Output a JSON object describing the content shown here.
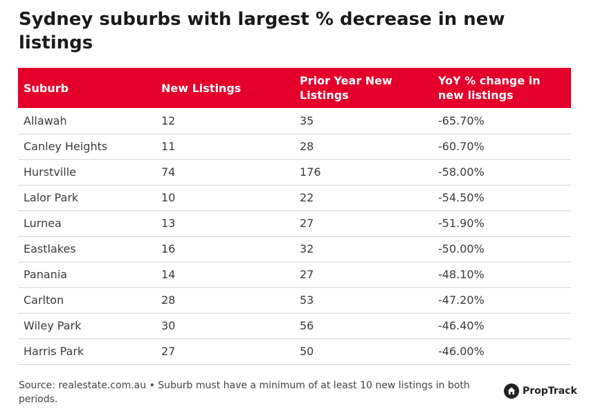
{
  "title": "Sydney suburbs with largest % decrease in new listings",
  "chart_data": {
    "type": "table",
    "columns": [
      "Suburb",
      "New Listings",
      "Prior Year New Listings",
      "YoY % change in new listings"
    ],
    "rows": [
      [
        "Allawah",
        "12",
        "35",
        "-65.70%"
      ],
      [
        "Canley Heights",
        "11",
        "28",
        "-60.70%"
      ],
      [
        "Hurstville",
        "74",
        "176",
        "-58.00%"
      ],
      [
        "Lalor Park",
        "10",
        "22",
        "-54.50%"
      ],
      [
        "Lurnea",
        "13",
        "27",
        "-51.90%"
      ],
      [
        "Eastlakes",
        "16",
        "32",
        "-50.00%"
      ],
      [
        "Panania",
        "14",
        "27",
        "-48.10%"
      ],
      [
        "Carlton",
        "28",
        "53",
        "-47.20%"
      ],
      [
        "Wiley Park",
        "30",
        "56",
        "-46.40%"
      ],
      [
        "Harris Park",
        "27",
        "50",
        "-46.00%"
      ]
    ]
  },
  "footer": {
    "source": "Source: realestate.com.au • Suburb must have a minimum of at least 10 new listings in both periods."
  },
  "brand": {
    "name": "PropTrack",
    "icon": "house-icon"
  },
  "colors": {
    "header_bg": "#e4002b",
    "header_text": "#ffffff"
  }
}
